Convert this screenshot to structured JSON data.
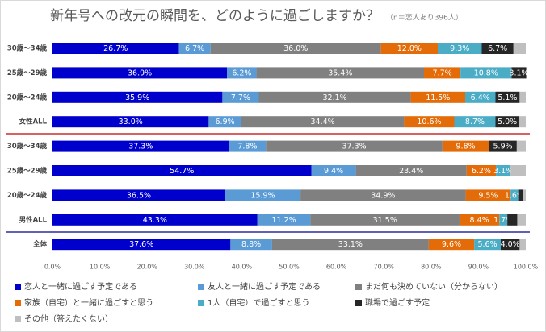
{
  "chart_data": {
    "type": "stacked-barh",
    "title": "新年号への改元の瞬間を、どのように過ごしますか？",
    "subtitle": "（n＝恋人あり396人）",
    "categories": [
      "30歳～34歳",
      "25歳～29歳",
      "20歳～24歳",
      "女性ALL",
      "30歳～34歳",
      "25歳～29歳",
      "20歳～24歳",
      "男性ALL",
      "全体"
    ],
    "xlim": [
      0,
      100
    ],
    "xticks": [
      {
        "value": 0,
        "label": "0.0%"
      },
      {
        "value": 10,
        "label": "10.0%"
      },
      {
        "value": 20,
        "label": "20.0%"
      },
      {
        "value": 30,
        "label": "30.0%"
      },
      {
        "value": 40,
        "label": "40.0%"
      },
      {
        "value": 50,
        "label": "50.0%"
      },
      {
        "value": 60,
        "label": "60.0%"
      },
      {
        "value": 70,
        "label": "70.0%"
      },
      {
        "value": 80,
        "label": "80.0%"
      },
      {
        "value": 90,
        "label": "90.0%"
      },
      {
        "value": 100,
        "label": "100.0%"
      }
    ],
    "series": [
      {
        "name": "恋人と一緒に過ごす予定である",
        "color": "#0000cc",
        "values": [
          26.7,
          36.9,
          35.9,
          33.0,
          37.3,
          54.7,
          36.5,
          43.3,
          37.6
        ],
        "value_labels": [
          "26.7%",
          "36.9%",
          "35.9%",
          "33.0%",
          "37.3%",
          "54.7%",
          "36.5%",
          "43.3%",
          "37.6%"
        ]
      },
      {
        "name": "友人と一緒に過ごす予定である",
        "color": "#5b9bd5",
        "values": [
          6.7,
          6.2,
          7.7,
          6.9,
          7.8,
          9.4,
          15.9,
          11.2,
          8.8
        ],
        "value_labels": [
          "6.7%",
          "6.2%",
          "7.7%",
          "6.9%",
          "7.8%",
          "9.4%",
          "15.9%",
          "11.2%",
          "8.8%"
        ]
      },
      {
        "name": "まだ何も決めていない（分からない）",
        "color": "#808080",
        "values": [
          36.0,
          35.4,
          32.1,
          34.4,
          37.3,
          23.4,
          34.9,
          31.5,
          33.1
        ],
        "value_labels": [
          "36.0%",
          "35.4%",
          "32.1%",
          "34.4%",
          "37.3%",
          "23.4%",
          "34.9%",
          "31.5%",
          "33.1%"
        ]
      },
      {
        "name": "家族（自宅）と一緒に過ごすと思う",
        "color": "#e36c09",
        "values": [
          12.0,
          7.7,
          11.5,
          10.6,
          9.8,
          6.2,
          9.5,
          8.4,
          9.6
        ],
        "value_labels": [
          "12.0%",
          "7.7%",
          "11.5%",
          "10.6%",
          "9.8%",
          "6.2%",
          "9.5%",
          "8.4%",
          "9.6%"
        ]
      },
      {
        "name": "1人（自宅）で過ごすと思う",
        "color": "#4bacc6",
        "values": [
          9.3,
          10.8,
          6.4,
          8.7,
          0,
          3.1,
          1.6,
          1.7,
          5.6
        ],
        "value_labels": [
          "9.3%",
          "10.8%",
          "6.4%",
          "8.7%",
          null,
          "3.1%",
          "1.6%",
          "1.7%",
          "5.6%"
        ]
      },
      {
        "name": "職場で過ごす予定",
        "color": "#262626",
        "values": [
          6.7,
          3.1,
          5.1,
          5.0,
          5.9,
          0,
          1.0,
          2.1,
          4.0
        ],
        "value_labels": [
          "6.7%",
          "3.1%",
          "5.1%",
          "5.0%",
          "5.9%",
          null,
          null,
          null,
          "4.0%"
        ]
      },
      {
        "name": "その他（答えたくない）",
        "color": "#bfbfbf",
        "values": [
          2.6,
          0,
          1.3,
          1.4,
          1.9,
          3.2,
          0.6,
          1.8,
          1.3
        ],
        "value_labels": [
          null,
          null,
          null,
          null,
          null,
          null,
          null,
          null,
          null
        ]
      }
    ]
  }
}
